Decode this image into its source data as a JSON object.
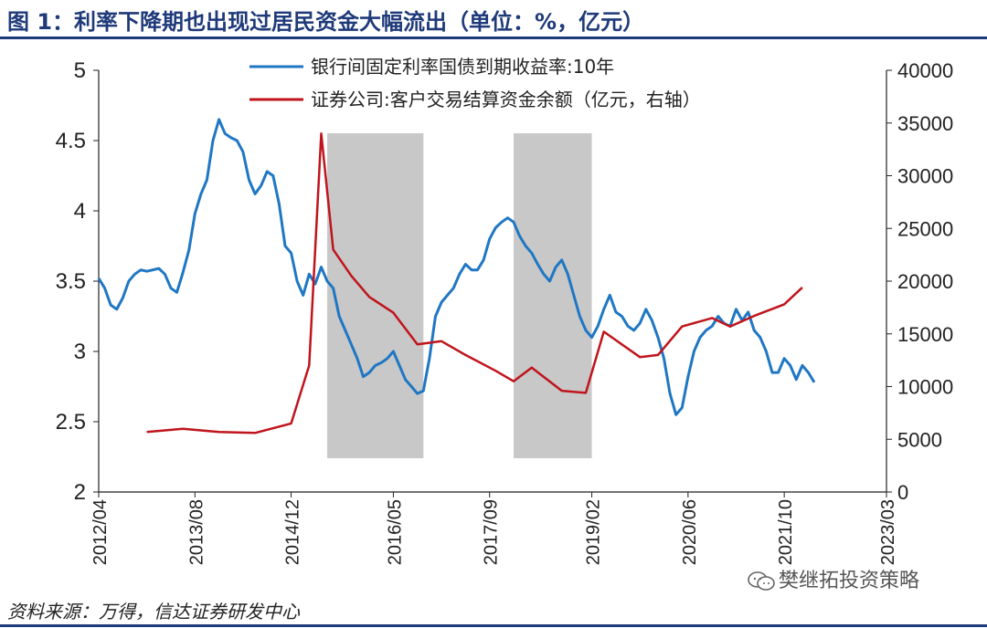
{
  "title": "图 1：利率下降期也出现过居民资金大幅流出（单位：%，亿元）",
  "source": "资料来源：万得，信达证券研发中心",
  "watermark": "樊继拓投资策略",
  "colors": {
    "title": "#1f3a7a",
    "yield": "#1f77c4",
    "funds": "#c0141c",
    "shade": "#c8c8c8"
  },
  "chart_data": {
    "type": "line",
    "title": "",
    "xlabel": "",
    "ylabel": "",
    "y2label": "",
    "x_ticks": [
      "2012/04",
      "2013/08",
      "2014/12",
      "2016/05",
      "2017/09",
      "2019/02",
      "2020/06",
      "2021/10",
      "2023/03"
    ],
    "ylim": [
      2,
      5
    ],
    "y_ticks": [
      2,
      2.5,
      3,
      3.5,
      4,
      4.5,
      5
    ],
    "y2lim": [
      0,
      40000
    ],
    "y2_ticks": [
      0,
      5000,
      10000,
      15000,
      20000,
      25000,
      30000,
      35000,
      40000
    ],
    "legend_position": "top-center",
    "shaded_periods": [
      [
        "2015-06",
        "2016-10"
      ],
      [
        "2018-01",
        "2019-02"
      ]
    ],
    "series": [
      {
        "name": "银行间固定利率国债到期收益率:10年",
        "axis": "left",
        "x": [
          "2012-04",
          "2012-05",
          "2012-06",
          "2012-07",
          "2012-08",
          "2012-09",
          "2012-10",
          "2012-11",
          "2012-12",
          "2013-01",
          "2013-02",
          "2013-03",
          "2013-04",
          "2013-05",
          "2013-06",
          "2013-07",
          "2013-08",
          "2013-09",
          "2013-10",
          "2013-11",
          "2013-12",
          "2014-01",
          "2014-02",
          "2014-03",
          "2014-04",
          "2014-05",
          "2014-06",
          "2014-07",
          "2014-08",
          "2014-09",
          "2014-10",
          "2014-11",
          "2014-12",
          "2015-01",
          "2015-02",
          "2015-03",
          "2015-04",
          "2015-05",
          "2015-06",
          "2015-07",
          "2015-08",
          "2015-09",
          "2015-10",
          "2015-11",
          "2015-12",
          "2016-01",
          "2016-02",
          "2016-03",
          "2016-04",
          "2016-05",
          "2016-06",
          "2016-07",
          "2016-08",
          "2016-09",
          "2016-10",
          "2016-11",
          "2016-12",
          "2017-01",
          "2017-02",
          "2017-03",
          "2017-04",
          "2017-05",
          "2017-06",
          "2017-07",
          "2017-08",
          "2017-09",
          "2017-10",
          "2017-11",
          "2017-12",
          "2018-01",
          "2018-02",
          "2018-03",
          "2018-04",
          "2018-05",
          "2018-06",
          "2018-07",
          "2018-08",
          "2018-09",
          "2018-10",
          "2018-11",
          "2018-12",
          "2019-01",
          "2019-02",
          "2019-03",
          "2019-04",
          "2019-05",
          "2019-06",
          "2019-07",
          "2019-08",
          "2019-09",
          "2019-10",
          "2019-11",
          "2019-12",
          "2020-01",
          "2020-02",
          "2020-03",
          "2020-04",
          "2020-05",
          "2020-06",
          "2020-07",
          "2020-08",
          "2020-09",
          "2020-10",
          "2020-11",
          "2020-12",
          "2021-01",
          "2021-02",
          "2021-03",
          "2021-04",
          "2021-05",
          "2021-06",
          "2021-07",
          "2021-08",
          "2021-09",
          "2021-10",
          "2021-11",
          "2021-12",
          "2022-01",
          "2022-02",
          "2022-03"
        ],
        "values": [
          3.52,
          3.45,
          3.33,
          3.3,
          3.38,
          3.5,
          3.55,
          3.58,
          3.57,
          3.58,
          3.59,
          3.55,
          3.45,
          3.42,
          3.56,
          3.72,
          3.98,
          4.12,
          4.22,
          4.5,
          4.65,
          4.55,
          4.52,
          4.5,
          4.42,
          4.22,
          4.12,
          4.18,
          4.28,
          4.25,
          4.05,
          3.75,
          3.7,
          3.5,
          3.4,
          3.55,
          3.48,
          3.6,
          3.5,
          3.45,
          3.25,
          3.15,
          3.05,
          2.95,
          2.82,
          2.85,
          2.9,
          2.92,
          2.95,
          3.0,
          2.9,
          2.8,
          2.75,
          2.7,
          2.72,
          2.95,
          3.25,
          3.35,
          3.4,
          3.45,
          3.55,
          3.62,
          3.58,
          3.58,
          3.65,
          3.8,
          3.88,
          3.92,
          3.95,
          3.92,
          3.82,
          3.75,
          3.7,
          3.62,
          3.55,
          3.5,
          3.6,
          3.65,
          3.55,
          3.4,
          3.25,
          3.15,
          3.1,
          3.18,
          3.3,
          3.4,
          3.28,
          3.25,
          3.18,
          3.15,
          3.2,
          3.3,
          3.22,
          3.1,
          2.95,
          2.7,
          2.55,
          2.6,
          2.82,
          3.0,
          3.1,
          3.15,
          3.18,
          3.25,
          3.2,
          3.18,
          3.3,
          3.22,
          3.28,
          3.15,
          3.1,
          3.0,
          2.85,
          2.85,
          2.95,
          2.9,
          2.8,
          2.9,
          2.85,
          2.78
        ]
      },
      {
        "name": "证券公司:客户交易结算资金余额（亿元，右轴）",
        "axis": "right",
        "x": [
          "2012-12",
          "2013-06",
          "2013-12",
          "2014-06",
          "2014-12",
          "2015-03",
          "2015-05",
          "2015-07",
          "2015-10",
          "2016-01",
          "2016-05",
          "2016-09",
          "2017-01",
          "2017-05",
          "2017-10",
          "2018-01",
          "2018-04",
          "2018-09",
          "2019-01",
          "2019-04",
          "2019-10",
          "2020-01",
          "2020-05",
          "2020-10",
          "2021-01",
          "2021-05",
          "2021-10",
          "2022-01"
        ],
        "values": [
          5700,
          6000,
          5700,
          5600,
          6500,
          12000,
          34000,
          23000,
          20500,
          18500,
          17000,
          14000,
          14300,
          13000,
          11500,
          10500,
          11800,
          9600,
          9400,
          15200,
          12800,
          13000,
          15700,
          16500,
          15700,
          16700,
          17800,
          19400
        ]
      }
    ]
  }
}
